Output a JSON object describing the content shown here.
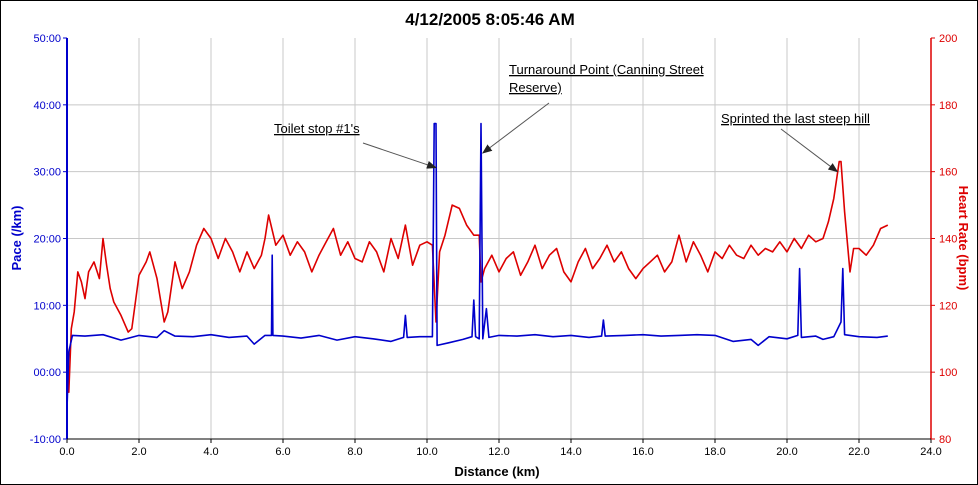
{
  "chart_data": {
    "type": "line",
    "title": "4/12/2005 8:05:46 AM",
    "xlabel": "Distance (km)",
    "ylabel_left": "Pace (/km)",
    "ylabel_right": "Heart Rate (bpm)",
    "xlim": [
      0,
      24
    ],
    "ylim_left": [
      -10,
      50
    ],
    "ylim_right": [
      80,
      200
    ],
    "x_ticks": [
      "0.0",
      "2.0",
      "4.0",
      "6.0",
      "8.0",
      "10.0",
      "12.0",
      "14.0",
      "16.0",
      "18.0",
      "20.0",
      "22.0",
      "24.0"
    ],
    "y_left_ticks": [
      "-10:00",
      "00:00",
      "10:00",
      "20:00",
      "30:00",
      "40:00",
      "50:00"
    ],
    "y_right_ticks": [
      "80",
      "100",
      "120",
      "140",
      "160",
      "180",
      "200"
    ],
    "grid": true,
    "colors": {
      "pace": "#0000cc",
      "heart_rate": "#dd0000",
      "grid": "#c8c8c8",
      "arrow": "#333333"
    },
    "series": [
      {
        "axis": "left",
        "points": [
          [
            0.0,
            -5.5
          ],
          [
            0.05,
            3.0
          ],
          [
            0.15,
            5.5
          ],
          [
            0.5,
            5.4
          ],
          [
            1.0,
            5.6
          ],
          [
            1.5,
            4.8
          ],
          [
            2.0,
            5.5
          ],
          [
            2.5,
            5.2
          ],
          [
            2.7,
            6.2
          ],
          [
            3.0,
            5.4
          ],
          [
            3.5,
            5.3
          ],
          [
            4.0,
            5.6
          ],
          [
            4.5,
            5.2
          ],
          [
            5.0,
            5.4
          ],
          [
            5.2,
            4.2
          ],
          [
            5.5,
            5.5
          ],
          [
            5.68,
            5.5
          ],
          [
            5.7,
            17.5
          ],
          [
            5.72,
            5.5
          ],
          [
            6.0,
            5.4
          ],
          [
            6.5,
            5.1
          ],
          [
            7.0,
            5.5
          ],
          [
            7.5,
            4.8
          ],
          [
            8.0,
            5.3
          ],
          [
            8.5,
            5.0
          ],
          [
            9.0,
            4.6
          ],
          [
            9.35,
            5.2
          ],
          [
            9.4,
            8.5
          ],
          [
            9.45,
            5.2
          ],
          [
            9.8,
            5.3
          ],
          [
            10.15,
            5.3
          ],
          [
            10.2,
            37.2
          ],
          [
            10.25,
            37.2
          ],
          [
            10.28,
            4.0
          ],
          [
            10.6,
            4.4
          ],
          [
            11.0,
            4.9
          ],
          [
            11.25,
            5.3
          ],
          [
            11.3,
            10.8
          ],
          [
            11.35,
            5.3
          ],
          [
            11.45,
            5.0
          ],
          [
            11.5,
            37.2
          ],
          [
            11.55,
            5.0
          ],
          [
            11.65,
            9.5
          ],
          [
            11.72,
            5.2
          ],
          [
            12.0,
            5.5
          ],
          [
            12.5,
            5.4
          ],
          [
            13.0,
            5.6
          ],
          [
            13.5,
            5.3
          ],
          [
            14.0,
            5.5
          ],
          [
            14.5,
            5.2
          ],
          [
            14.85,
            5.4
          ],
          [
            14.9,
            7.8
          ],
          [
            14.95,
            5.4
          ],
          [
            15.5,
            5.5
          ],
          [
            16.0,
            5.6
          ],
          [
            16.5,
            5.4
          ],
          [
            17.0,
            5.5
          ],
          [
            17.5,
            5.6
          ],
          [
            18.0,
            5.5
          ],
          [
            18.5,
            4.6
          ],
          [
            19.0,
            4.9
          ],
          [
            19.2,
            4.0
          ],
          [
            19.5,
            5.3
          ],
          [
            20.0,
            5.0
          ],
          [
            20.3,
            5.5
          ],
          [
            20.35,
            15.5
          ],
          [
            20.4,
            5.2
          ],
          [
            20.8,
            5.4
          ],
          [
            21.0,
            4.9
          ],
          [
            21.3,
            5.3
          ],
          [
            21.5,
            7.5
          ],
          [
            21.55,
            15.5
          ],
          [
            21.6,
            5.6
          ],
          [
            22.0,
            5.3
          ],
          [
            22.5,
            5.2
          ],
          [
            22.8,
            5.4
          ]
        ]
      },
      {
        "axis": "right",
        "points": [
          [
            0.0,
            110
          ],
          [
            0.05,
            94
          ],
          [
            0.12,
            113
          ],
          [
            0.2,
            118
          ],
          [
            0.3,
            130
          ],
          [
            0.4,
            127
          ],
          [
            0.5,
            122
          ],
          [
            0.6,
            130
          ],
          [
            0.75,
            133
          ],
          [
            0.9,
            128
          ],
          [
            1.0,
            140
          ],
          [
            1.1,
            132
          ],
          [
            1.2,
            125
          ],
          [
            1.3,
            121
          ],
          [
            1.5,
            117
          ],
          [
            1.7,
            112
          ],
          [
            1.8,
            113
          ],
          [
            2.0,
            129
          ],
          [
            2.2,
            133
          ],
          [
            2.3,
            136
          ],
          [
            2.5,
            128
          ],
          [
            2.7,
            115
          ],
          [
            2.8,
            118
          ],
          [
            3.0,
            133
          ],
          [
            3.2,
            125
          ],
          [
            3.4,
            130
          ],
          [
            3.6,
            138
          ],
          [
            3.8,
            143
          ],
          [
            4.0,
            140
          ],
          [
            4.2,
            134
          ],
          [
            4.4,
            140
          ],
          [
            4.6,
            136
          ],
          [
            4.8,
            130
          ],
          [
            5.0,
            136
          ],
          [
            5.2,
            131
          ],
          [
            5.4,
            135
          ],
          [
            5.5,
            140
          ],
          [
            5.6,
            147
          ],
          [
            5.8,
            138
          ],
          [
            6.0,
            141
          ],
          [
            6.2,
            135
          ],
          [
            6.4,
            139
          ],
          [
            6.6,
            136
          ],
          [
            6.8,
            130
          ],
          [
            7.0,
            135
          ],
          [
            7.2,
            139
          ],
          [
            7.4,
            143
          ],
          [
            7.6,
            135
          ],
          [
            7.8,
            139
          ],
          [
            8.0,
            134
          ],
          [
            8.2,
            133
          ],
          [
            8.4,
            139
          ],
          [
            8.6,
            136
          ],
          [
            8.8,
            130
          ],
          [
            9.0,
            140
          ],
          [
            9.2,
            134
          ],
          [
            9.4,
            144
          ],
          [
            9.6,
            132
          ],
          [
            9.8,
            138
          ],
          [
            10.0,
            139
          ],
          [
            10.15,
            138
          ],
          [
            10.25,
            115
          ],
          [
            10.35,
            136
          ],
          [
            10.5,
            141
          ],
          [
            10.7,
            150
          ],
          [
            10.9,
            149
          ],
          [
            11.1,
            144
          ],
          [
            11.3,
            141
          ],
          [
            11.45,
            141
          ],
          [
            11.5,
            127
          ],
          [
            11.6,
            131
          ],
          [
            11.8,
            135
          ],
          [
            12.0,
            130
          ],
          [
            12.2,
            134
          ],
          [
            12.4,
            136
          ],
          [
            12.6,
            129
          ],
          [
            12.8,
            133
          ],
          [
            13.0,
            138
          ],
          [
            13.2,
            131
          ],
          [
            13.4,
            135
          ],
          [
            13.6,
            137
          ],
          [
            13.8,
            130
          ],
          [
            14.0,
            127
          ],
          [
            14.2,
            133
          ],
          [
            14.4,
            137
          ],
          [
            14.6,
            131
          ],
          [
            14.8,
            134
          ],
          [
            15.0,
            138
          ],
          [
            15.2,
            133
          ],
          [
            15.4,
            136
          ],
          [
            15.6,
            131
          ],
          [
            15.8,
            128
          ],
          [
            16.0,
            131
          ],
          [
            16.2,
            133
          ],
          [
            16.4,
            135
          ],
          [
            16.6,
            130
          ],
          [
            16.8,
            133
          ],
          [
            17.0,
            141
          ],
          [
            17.2,
            133
          ],
          [
            17.4,
            139
          ],
          [
            17.6,
            135
          ],
          [
            17.8,
            130
          ],
          [
            18.0,
            136
          ],
          [
            18.2,
            134
          ],
          [
            18.4,
            138
          ],
          [
            18.6,
            135
          ],
          [
            18.8,
            134
          ],
          [
            19.0,
            138
          ],
          [
            19.2,
            135
          ],
          [
            19.4,
            137
          ],
          [
            19.6,
            136
          ],
          [
            19.8,
            139
          ],
          [
            20.0,
            136
          ],
          [
            20.2,
            140
          ],
          [
            20.4,
            137
          ],
          [
            20.6,
            141
          ],
          [
            20.8,
            139
          ],
          [
            21.0,
            140
          ],
          [
            21.15,
            145
          ],
          [
            21.3,
            152
          ],
          [
            21.45,
            163
          ],
          [
            21.5,
            163
          ],
          [
            21.6,
            148
          ],
          [
            21.75,
            130
          ],
          [
            21.85,
            137
          ],
          [
            22.0,
            137
          ],
          [
            22.2,
            135
          ],
          [
            22.4,
            138
          ],
          [
            22.6,
            143
          ],
          [
            22.8,
            144
          ]
        ]
      }
    ],
    "annotations": [
      {
        "text": "Toilet stop #1's",
        "anchor": [
          10.25,
          30.6
        ]
      },
      {
        "text": "Turnaround Point (Canning Street",
        "anchor": [
          11.55,
          32.8
        ]
      },
      {
        "text": "Reserve)",
        "anchor": null
      },
      {
        "text": "Sprinted the last steep hill",
        "anchor": [
          21.4,
          30.0
        ]
      }
    ]
  }
}
